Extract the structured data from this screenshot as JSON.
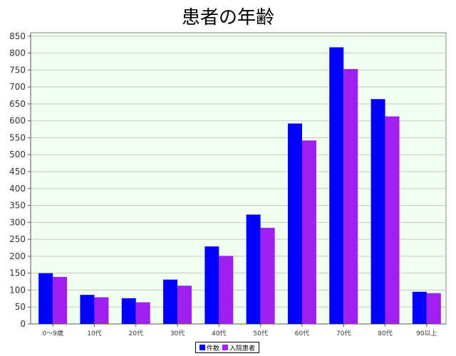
{
  "chart_data": {
    "type": "bar",
    "title": "患者の年齢",
    "categories": [
      "0〜9歳",
      "10代",
      "20代",
      "30代",
      "40代",
      "50代",
      "60代",
      "70代",
      "80代",
      "90以上"
    ],
    "series": [
      {
        "name": "件数",
        "color": "#0000ff",
        "values": [
          150,
          86,
          76,
          131,
          229,
          323,
          592,
          817,
          664,
          95
        ]
      },
      {
        "name": "入院患者",
        "color": "#a020f0",
        "values": [
          139,
          79,
          64,
          113,
          201,
          284,
          542,
          753,
          613,
          91
        ]
      }
    ],
    "ylim": [
      0,
      860
    ],
    "yticks": [
      0,
      50,
      100,
      150,
      200,
      250,
      300,
      350,
      400,
      450,
      500,
      550,
      600,
      650,
      700,
      750,
      800,
      850
    ],
    "grid": true,
    "plot_background": "#f0fff0",
    "legend_position": "bottom-center"
  }
}
